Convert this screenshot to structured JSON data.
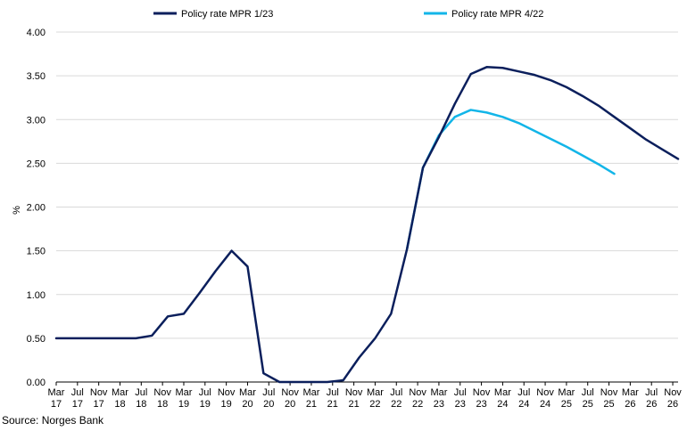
{
  "chart_data": {
    "type": "line",
    "ylabel": "%",
    "xlabel": "",
    "ylim": [
      0,
      4
    ],
    "yticks": [
      "0.00",
      "0.50",
      "1.00",
      "1.50",
      "2.00",
      "2.50",
      "3.00",
      "3.50",
      "4.00"
    ],
    "x_ticks": [
      [
        "Mar",
        "17"
      ],
      [
        "Jul",
        "17"
      ],
      [
        "Nov",
        "17"
      ],
      [
        "Mar",
        "18"
      ],
      [
        "Jul",
        "18"
      ],
      [
        "Nov",
        "18"
      ],
      [
        "Mar",
        "19"
      ],
      [
        "Jul",
        "19"
      ],
      [
        "Nov",
        "19"
      ],
      [
        "Mar",
        "20"
      ],
      [
        "Jul",
        "20"
      ],
      [
        "Nov",
        "20"
      ],
      [
        "Mar",
        "21"
      ],
      [
        "Jul",
        "21"
      ],
      [
        "Nov",
        "21"
      ],
      [
        "Mar",
        "22"
      ],
      [
        "Jul",
        "22"
      ],
      [
        "Nov",
        "22"
      ],
      [
        "Mar",
        "23"
      ],
      [
        "Jul",
        "23"
      ],
      [
        "Nov",
        "23"
      ],
      [
        "Mar",
        "24"
      ],
      [
        "Jul",
        "24"
      ],
      [
        "Nov",
        "24"
      ],
      [
        "Mar",
        "25"
      ],
      [
        "Jul",
        "25"
      ],
      [
        "Nov",
        "25"
      ],
      [
        "Mar",
        "26"
      ],
      [
        "Jul",
        "26"
      ],
      [
        "Nov",
        "26"
      ]
    ],
    "legend_position": "top",
    "series": [
      {
        "name": "Policy rate MPR 1/23",
        "color": "#0b1f5c",
        "points": [
          [
            0,
            0.5
          ],
          [
            3,
            0.5
          ],
          [
            6,
            0.5
          ],
          [
            9,
            0.5
          ],
          [
            12,
            0.5
          ],
          [
            15,
            0.5
          ],
          [
            18,
            0.53
          ],
          [
            21,
            0.75
          ],
          [
            24,
            0.78
          ],
          [
            27,
            1.02
          ],
          [
            30,
            1.27
          ],
          [
            33,
            1.5
          ],
          [
            36,
            1.32
          ],
          [
            39,
            0.1
          ],
          [
            42,
            0.0
          ],
          [
            45,
            0.0
          ],
          [
            48,
            0.0
          ],
          [
            51,
            0.0
          ],
          [
            54,
            0.02
          ],
          [
            57,
            0.28
          ],
          [
            60,
            0.5
          ],
          [
            63,
            0.78
          ],
          [
            66,
            1.52
          ],
          [
            69,
            2.45
          ],
          [
            72,
            2.8
          ],
          [
            75,
            3.18
          ],
          [
            78,
            3.52
          ],
          [
            81,
            3.6
          ],
          [
            84,
            3.59
          ],
          [
            87,
            3.55
          ],
          [
            90,
            3.51
          ],
          [
            93,
            3.45
          ],
          [
            96,
            3.37
          ],
          [
            99,
            3.27
          ],
          [
            102,
            3.16
          ],
          [
            105,
            3.03
          ],
          [
            108,
            2.9
          ],
          [
            111,
            2.77
          ],
          [
            114,
            2.66
          ],
          [
            117,
            2.55
          ]
        ]
      },
      {
        "name": "Policy rate MPR 4/22",
        "color": "#12b5e8",
        "points": [
          [
            66,
            1.52
          ],
          [
            69,
            2.45
          ],
          [
            72,
            2.82
          ],
          [
            75,
            3.03
          ],
          [
            78,
            3.11
          ],
          [
            81,
            3.08
          ],
          [
            84,
            3.03
          ],
          [
            87,
            2.96
          ],
          [
            90,
            2.87
          ],
          [
            93,
            2.78
          ],
          [
            96,
            2.69
          ],
          [
            99,
            2.59
          ],
          [
            102,
            2.49
          ],
          [
            105,
            2.38
          ]
        ]
      }
    ]
  },
  "source": "Source: Norges Bank"
}
